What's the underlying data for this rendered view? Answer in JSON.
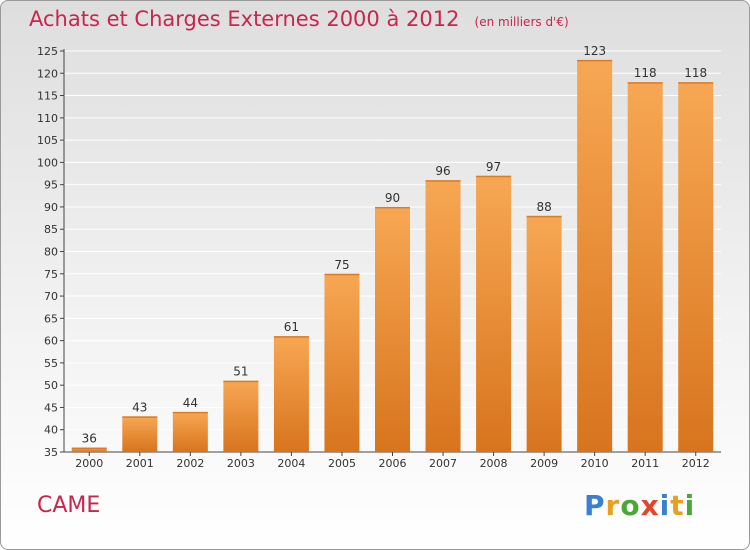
{
  "title": "Achats et Charges Externes 2000 à 2012",
  "unit": "(en milliers d'€)",
  "commune": "CAME",
  "logo": {
    "text": "Proxiti",
    "letters": [
      {
        "ch": "P",
        "color": "#3a7fd0"
      },
      {
        "ch": "r",
        "color": "#e8a020"
      },
      {
        "ch": "o",
        "color": "#49a838"
      },
      {
        "ch": "x",
        "color": "#e2462b"
      },
      {
        "ch": "i",
        "color": "#3a7fd0"
      },
      {
        "ch": "t",
        "color": "#e8a020"
      },
      {
        "ch": "i",
        "color": "#49a838"
      }
    ]
  },
  "colors": {
    "bar_light": "#f7a753",
    "bar_dark": "#d8741e",
    "title": "#c8264c",
    "grid": "#ffffff",
    "axis": "#444444"
  },
  "chart_data": {
    "type": "bar",
    "title": "Achats et Charges Externes 2000 à 2012",
    "xlabel": "",
    "ylabel": "",
    "categories": [
      "2000",
      "2001",
      "2002",
      "2003",
      "2004",
      "2005",
      "2006",
      "2007",
      "2008",
      "2009",
      "2010",
      "2011",
      "2012"
    ],
    "values": [
      36,
      43,
      44,
      51,
      61,
      75,
      90,
      96,
      97,
      88,
      123,
      118,
      118
    ],
    "ylim": [
      35,
      125
    ],
    "yticks": [
      35,
      40,
      45,
      50,
      55,
      60,
      65,
      70,
      75,
      80,
      85,
      90,
      95,
      100,
      105,
      110,
      115,
      120,
      125
    ],
    "grid": true
  }
}
